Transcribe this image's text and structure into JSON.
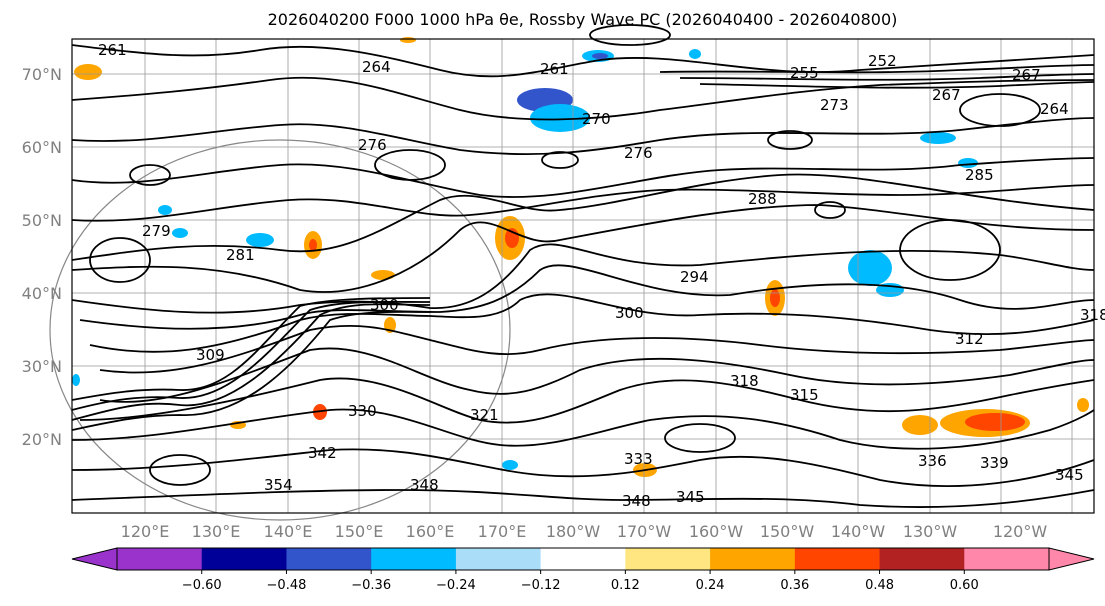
{
  "title": "2026040200 F000 1000 hPa θe, Rossby Wave PC (2026040400 - 2026040800)",
  "lat_ticks": [
    "70°N",
    "60°N",
    "50°N",
    "40°N",
    "30°N",
    "20°N"
  ],
  "lon_ticks": [
    "120°E",
    "130°E",
    "140°E",
    "150°E",
    "160°E",
    "170°E",
    "180°W",
    "170°W",
    "160°W",
    "150°W",
    "140°W",
    "130°W",
    "120°W"
  ],
  "contour_labels": [
    "261",
    "264",
    "261",
    "255",
    "252",
    "273",
    "270",
    "276",
    "276",
    "279",
    "281",
    "285",
    "288",
    "294",
    "300",
    "300",
    "312",
    "318",
    "315",
    "318",
    "321",
    "330",
    "336",
    "339",
    "342",
    "345",
    "345",
    "348",
    "348",
    "354",
    "333",
    "309",
    "267",
    "264",
    "267"
  ],
  "colorbar": {
    "ticks": [
      "−0.60",
      "−0.48",
      "−0.36",
      "−0.24",
      "−0.12",
      "0.12",
      "0.24",
      "0.36",
      "0.48",
      "0.60"
    ],
    "colors": [
      "#9933cc",
      "#000099",
      "#3355cc",
      "#00bbff",
      "#aaddf7",
      "#ffffff",
      "#ffe680",
      "#ffa500",
      "#ff4500",
      "#b22222",
      "#ff88aa",
      "#ffb0d0"
    ],
    "low_extend_color": "#9933cc",
    "high_extend_color": "#ff88aa"
  }
}
